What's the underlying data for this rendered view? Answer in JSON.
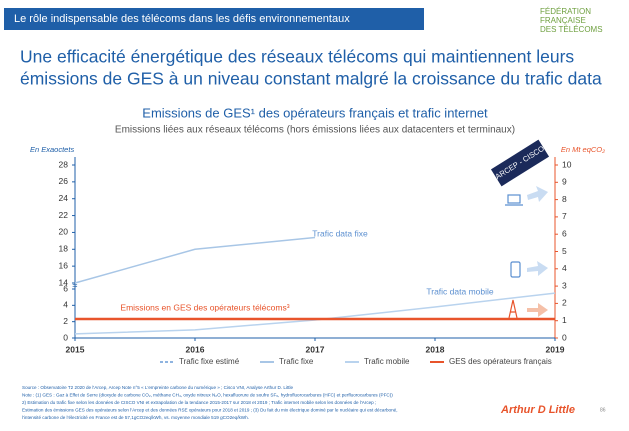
{
  "header": "Le rôle indispensable des télécoms dans les défis environnementaux",
  "logo": [
    "FÉDÉRATION",
    "FRANÇAISE",
    "DES TÉLÉCOMS"
  ],
  "title": [
    "Une efficacité énergétique des réseaux télécoms qui maintiennent leurs",
    "émissions de GES à un niveau constant malgré la croissance du trafic data"
  ],
  "chart_data": {
    "type": "line",
    "title": "Emissions de GES¹ des opérateurs français et trafic internet",
    "subtitle": "Emissions liées aux réseaux télécoms (hors émissions liées aux datacenters et terminaux)",
    "y_label": "En Exaoctets",
    "y2_label": "En Mt eqCO₂",
    "x": [
      2015,
      2016,
      2017,
      2018,
      2019
    ],
    "xticks": [
      2015,
      2016,
      2017,
      2018,
      2019
    ],
    "ylim": [
      0,
      28
    ],
    "axis_break": [
      6,
      14
    ],
    "yticks": [
      0,
      2,
      4,
      6,
      14,
      16,
      18,
      20,
      22,
      24,
      26,
      28
    ],
    "y2lim": [
      0,
      10
    ],
    "y2ticks": [
      0,
      1,
      2,
      3,
      4,
      5,
      6,
      7,
      8,
      9,
      10
    ],
    "series": [
      {
        "name": "Trafic fixe estimé",
        "color": "#8fb4e0",
        "dashed": true,
        "values": [
          null,
          null,
          19.4,
          null,
          25.2
        ]
      },
      {
        "name": "Trafic fixe",
        "color": "#a8c6e6",
        "values": [
          14,
          18,
          19.4,
          null,
          null
        ]
      },
      {
        "name": "Trafic mobile",
        "color": "#b9d3ee",
        "values": [
          0.5,
          1,
          2.2,
          3.8,
          5.5
        ]
      },
      {
        "name": "GES des opérateurs français",
        "color": "#e8542b",
        "axis": "y2",
        "values": [
          1.1,
          1.1,
          1.1,
          1.1,
          1.1
        ]
      }
    ],
    "annotations": [
      "Trafic data fixe",
      "Trafic data mobile",
      "Emissions en GES des opérateurs télécoms³",
      "ARCEP - CISCO"
    ]
  },
  "footnotes": [
    "Source : Observatoire T2 2020 de l'Arcep, Arcep Note n°5 « L'empreinte carbone du numérique » ; Cisco VNI, Analyse Arthur D. Little",
    "Note : (1) GES : Gaz à Effet de Serre (dioxyde de carbone CO₂, méthane CH₄, oxyde nitreux N₂O, hexafluorure de soufre SF₆, hydrofluorocarbures (HFC) et perfluorocarbures (PFC))",
    "2) Estimation du trafic fixe selon les données de CISCO VNI et extrapolation de la tendance 2015-2017 sur 2018 et 2019 ; Trafic internet mobile selon les données de l'Arcep ;",
    "Estimation des émissions GES des opérateurs selon l'Arcep et des données RSE opérateurs pour 2018 et 2019 ; (3) Du fait du mix électrique dominé par le nucléaire qui est décarboné,",
    "l'intensité carbone de l'électricité en France est de 57,1gCO2eq/kWh, vs. moyenne mondiale 519 gCO2eq/kWh."
  ],
  "brand": "Arthur D Little",
  "page_number": "86"
}
